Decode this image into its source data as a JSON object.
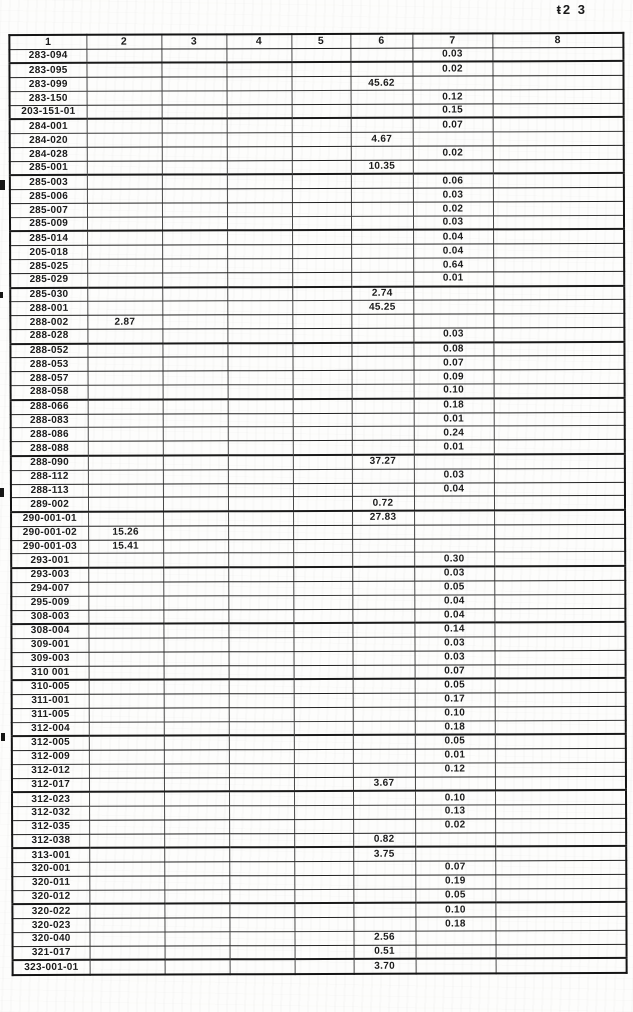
{
  "page_label": "ŧ2 3",
  "table": {
    "columns": [
      "1",
      "2",
      "3",
      "4",
      "5",
      "6",
      "7",
      "8"
    ],
    "rows": [
      {
        "id": "283-094",
        "col": 7,
        "val": "0.03"
      },
      {
        "id": "283-095",
        "col": 7,
        "val": "0.02"
      },
      {
        "id": "283-099",
        "col": 6,
        "val": "45.62"
      },
      {
        "id": "283-150",
        "col": 7,
        "val": "0.12"
      },
      {
        "id": "203-151-01",
        "col": 7,
        "val": "0.15"
      },
      {
        "id": "284-001",
        "col": 7,
        "val": "0.07"
      },
      {
        "id": "284-020",
        "col": 6,
        "val": "4.67"
      },
      {
        "id": "284-028",
        "col": 7,
        "val": "0.02"
      },
      {
        "id": "285-001",
        "col": 6,
        "val": "10.35"
      },
      {
        "id": "285-003",
        "col": 7,
        "val": "0.06"
      },
      {
        "id": "285-006",
        "col": 7,
        "val": "0.03"
      },
      {
        "id": "285-007",
        "col": 7,
        "val": "0.02"
      },
      {
        "id": "285-009",
        "col": 7,
        "val": "0.03"
      },
      {
        "id": "285-014",
        "col": 7,
        "val": "0.04"
      },
      {
        "id": "205-018",
        "col": 7,
        "val": "0.04"
      },
      {
        "id": "285-025",
        "col": 7,
        "val": "0.64"
      },
      {
        "id": "285-029",
        "col": 7,
        "val": "0.01"
      },
      {
        "id": "285-030",
        "col": 6,
        "val": "2.74"
      },
      {
        "id": "288-001",
        "col": 6,
        "val": "45.25"
      },
      {
        "id": "288-002",
        "col": 2,
        "val": "2.87"
      },
      {
        "id": "288-028",
        "col": 7,
        "val": "0.03"
      },
      {
        "id": "288-052",
        "col": 7,
        "val": "0.08"
      },
      {
        "id": "288-053",
        "col": 7,
        "val": "0.07"
      },
      {
        "id": "288-057",
        "col": 7,
        "val": "0.09"
      },
      {
        "id": "288-058",
        "col": 7,
        "val": "0.10"
      },
      {
        "id": "288-066",
        "col": 7,
        "val": "0.18"
      },
      {
        "id": "288-083",
        "col": 7,
        "val": "0.01"
      },
      {
        "id": "288-086",
        "col": 7,
        "val": "0.24"
      },
      {
        "id": "288-088",
        "col": 7,
        "val": "0.01"
      },
      {
        "id": "288-090",
        "col": 6,
        "val": "37.27"
      },
      {
        "id": "288-112",
        "col": 7,
        "val": "0.03"
      },
      {
        "id": "288-113",
        "col": 7,
        "val": "0.04"
      },
      {
        "id": "289-002",
        "col": 6,
        "val": "0.72"
      },
      {
        "id": "290-001-01",
        "col": 6,
        "val": "27.83"
      },
      {
        "id": "290-001-02",
        "col": 2,
        "val": "15.26"
      },
      {
        "id": "290-001-03",
        "col": 2,
        "val": "15.41"
      },
      {
        "id": "293-001",
        "col": 7,
        "val": "0.30"
      },
      {
        "id": "293-003",
        "col": 7,
        "val": "0.03"
      },
      {
        "id": "294-007",
        "col": 7,
        "val": "0.05"
      },
      {
        "id": "295-009",
        "col": 7,
        "val": "0.04"
      },
      {
        "id": "308-003",
        "col": 7,
        "val": "0.04"
      },
      {
        "id": "308-004",
        "col": 7,
        "val": "0.14"
      },
      {
        "id": "309-001",
        "col": 7,
        "val": "0.03"
      },
      {
        "id": "309-003",
        "col": 7,
        "val": "0.03"
      },
      {
        "id": "310 001",
        "col": 7,
        "val": "0.07"
      },
      {
        "id": "310-005",
        "col": 7,
        "val": "0.05"
      },
      {
        "id": "311-001",
        "col": 7,
        "val": "0.17"
      },
      {
        "id": "311-005",
        "col": 7,
        "val": "0.10"
      },
      {
        "id": "312-004",
        "col": 7,
        "val": "0.18"
      },
      {
        "id": "312-005",
        "col": 7,
        "val": "0.05"
      },
      {
        "id": "312-009",
        "col": 7,
        "val": "0.01"
      },
      {
        "id": "312-012",
        "col": 7,
        "val": "0.12"
      },
      {
        "id": "312-017",
        "col": 6,
        "val": "3.67"
      },
      {
        "id": "312-023",
        "col": 7,
        "val": "0.10"
      },
      {
        "id": "312-032",
        "col": 7,
        "val": "0.13"
      },
      {
        "id": "312-035",
        "col": 7,
        "val": "0.02"
      },
      {
        "id": "312-038",
        "col": 6,
        "val": "0.82"
      },
      {
        "id": "313-001",
        "col": 6,
        "val": "3.75"
      },
      {
        "id": "320-001",
        "col": 7,
        "val": "0.07"
      },
      {
        "id": "320-011",
        "col": 7,
        "val": "0.19"
      },
      {
        "id": "320-012",
        "col": 7,
        "val": "0.05"
      },
      {
        "id": "320-022",
        "col": 7,
        "val": "0.10"
      },
      {
        "id": "320-023",
        "col": 7,
        "val": "0.18"
      },
      {
        "id": "320-040",
        "col": 6,
        "val": "2.56"
      },
      {
        "id": "321-017",
        "col": 6,
        "val": "0.51"
      },
      {
        "id": "323-001-01",
        "col": 6,
        "val": "3.70"
      }
    ]
  }
}
